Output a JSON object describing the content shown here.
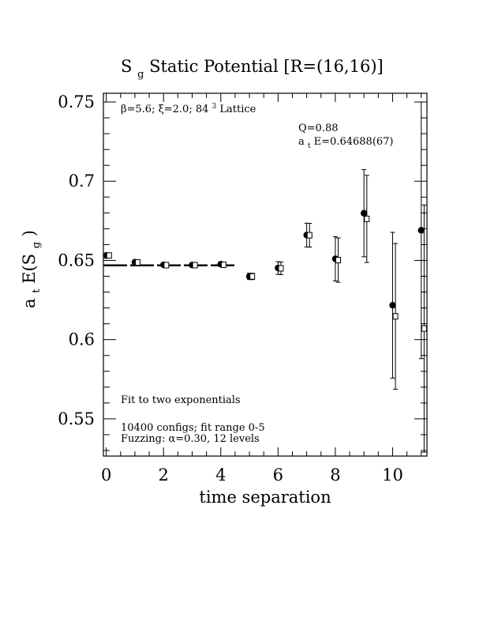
{
  "chart_data": {
    "type": "scatter",
    "title_main": "S",
    "title_sub": "g",
    "title_rest": " Static Potential [R=(16,16)]",
    "xlabel": "time separation",
    "ylabel_a": "a",
    "ylabel_t": "t",
    "ylabel_E": "E(S",
    "ylabel_g": "g",
    "ylabel_close": ")",
    "xlim": [
      -0.1,
      11.2
    ],
    "ylim": [
      0.5265,
      0.7555
    ],
    "xticks": [
      0,
      2,
      4,
      6,
      8,
      10
    ],
    "xtick_labels": [
      "0",
      "2",
      "4",
      "6",
      "8",
      "10"
    ],
    "yticks": [
      0.55,
      0.6,
      0.65,
      0.7,
      0.75
    ],
    "ytick_labels": [
      "0.55",
      "0.6",
      "0.65",
      "0.7",
      "0.75"
    ],
    "annotations": {
      "lattice_beta": "β=5.6; ξ=2.0; 84",
      "lattice_exp": "3",
      "lattice_rest": " Lattice",
      "q_value": "Q=0.88",
      "fit_a": "a",
      "fit_t": "t",
      "fit_rest": "E=0.64688(67)",
      "fit_type": "Fit to two exponentials",
      "configs": "10400 configs; fit range 0-5",
      "fuzzing": "Fuzzing: α=0.30, 12 levels"
    },
    "fit": {
      "value": 0.64688,
      "x_range": [
        -0.1,
        4.55
      ]
    },
    "series": [
      {
        "marker": "filled-circle",
        "points": [
          {
            "x": 0,
            "y": 0.6531,
            "err": 0.0005
          },
          {
            "x": 1,
            "y": 0.6489,
            "err": 0.0008
          },
          {
            "x": 2,
            "y": 0.6472,
            "err": 0.0008
          },
          {
            "x": 3,
            "y": 0.6471,
            "err": 0.0012
          },
          {
            "x": 4,
            "y": 0.6476,
            "err": 0.0015
          },
          {
            "x": 5,
            "y": 0.6399,
            "err": 0.002
          },
          {
            "x": 6,
            "y": 0.6452,
            "err": 0.004
          },
          {
            "x": 7,
            "y": 0.666,
            "err": 0.0075
          },
          {
            "x": 8,
            "y": 0.651,
            "err": 0.014
          },
          {
            "x": 9,
            "y": 0.6798,
            "err": 0.0275
          },
          {
            "x": 10,
            "y": 0.6217,
            "err": 0.046
          },
          {
            "x": 11,
            "y": 0.669,
            "err": 0.081
          }
        ]
      },
      {
        "marker": "open-square",
        "points": [
          {
            "x": 0.1,
            "y": 0.6531,
            "err": 0.0005
          },
          {
            "x": 1.1,
            "y": 0.6487,
            "err": 0.0008
          },
          {
            "x": 2.1,
            "y": 0.647,
            "err": 0.0008
          },
          {
            "x": 3.1,
            "y": 0.647,
            "err": 0.0012
          },
          {
            "x": 4.1,
            "y": 0.6472,
            "err": 0.0015
          },
          {
            "x": 5.1,
            "y": 0.6399,
            "err": 0.002
          },
          {
            "x": 6.1,
            "y": 0.645,
            "err": 0.004
          },
          {
            "x": 7.1,
            "y": 0.6659,
            "err": 0.0075
          },
          {
            "x": 8.1,
            "y": 0.6502,
            "err": 0.014
          },
          {
            "x": 9.1,
            "y": 0.6762,
            "err": 0.0275
          },
          {
            "x": 10.1,
            "y": 0.6147,
            "err": 0.046
          },
          {
            "x": 11.1,
            "y": 0.607,
            "err": 0.078
          }
        ]
      }
    ]
  }
}
